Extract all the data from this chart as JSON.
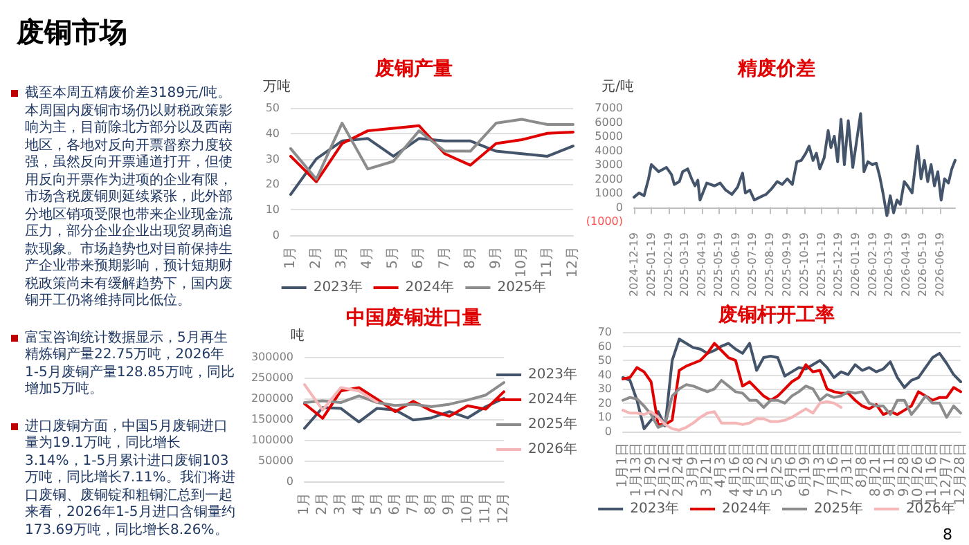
{
  "chart_data": [
    {
      "type": "other",
      "title": "废铜市场",
      "annotations": [
        "截至本周五精废价差3189元/吨。本周国内废铜市场仍以财税政策影响为主，目前除北方部分以及西南地区，各地对反向开票督察力度较强，虽然反向开票通道打开，但使用反向开票作为进项的企业有限，市场含税废铜则延续紧张，此外部分地区销项受限也带来企业现金流压力，部分企业企业出现贸易商追款现象。市场趋势也对目前保持生产企业带来预期影响，预计短期财税政策尚未有缓解趋势下，国内废铜开工仍将维持同比低位。",
        "富宝咨询统计数据显示，5月再生精炼铜产量22.75万吨，2026年1-5月废铜产量128.85万吨，同比增加5万吨。",
        "进口废铜方面，中国5月废铜进口量为19.1万吨，同比增长3.14%，1-5月累计进口废铜103万吨，同比增长7.11%。我们将进口废铜、废铜锭和粗铜汇总到一起来看，2026年1-5月进口含铜量约173.69万吨，同比增长8.26%。",
        "8"
      ]
    },
    {
      "type": "line",
      "title": "废铜产量",
      "ylabel": "万吨",
      "categories": [
        "1月",
        "2月",
        "3月",
        "4月",
        "5月",
        "6月",
        "7月",
        "8月",
        "9月",
        "10月",
        "11月",
        "12月"
      ],
      "series": [
        {
          "name": "2023年",
          "color": "#44546a",
          "values": [
            16,
            30,
            37,
            38,
            31,
            38,
            37,
            37,
            33,
            32,
            31,
            35
          ]
        },
        {
          "name": "2024年",
          "color": "#e00000",
          "values": [
            31,
            21,
            36,
            41,
            42,
            43,
            32,
            27.5,
            36,
            37.5,
            40,
            40.5
          ]
        },
        {
          "name": "2025年",
          "color": "#8c8c8c",
          "values": [
            34,
            22,
            44,
            26,
            29,
            41,
            33,
            33,
            44,
            45.5,
            43.5,
            43.5
          ]
        }
      ],
      "ylim": [
        0,
        50
      ],
      "yticks": [
        0,
        10,
        20,
        30,
        40,
        50
      ],
      "grid": "y",
      "legend": "bottom"
    },
    {
      "type": "line",
      "title": "精废价差",
      "ylabel": "元/吨",
      "xlim": [
        "2024-12-19",
        "2026-07-16"
      ],
      "xticks": [
        "2024-12-19",
        "2025-01-19",
        "2025-02-19",
        "2025-03-19",
        "2025-04-19",
        "2025-05-19",
        "2025-06-19",
        "2025-07-19",
        "2025-08-19",
        "2025-09-19",
        "2025-10-19",
        "2025-11-19",
        "2025-12-19",
        "2026-01-19",
        "2026-02-19",
        "2026-03-19",
        "2026-04-19",
        "2026-05-19",
        "2026-06-19"
      ],
      "x": [
        "2024-12-19",
        "2024-12-28",
        "2025-01-06",
        "2025-01-14",
        "2025-01-19",
        "2025-02-01",
        "2025-02-15",
        "2025-02-24",
        "2025-03-01",
        "2025-03-10",
        "2025-03-16",
        "2025-03-25",
        "2025-04-01",
        "2025-04-07",
        "2025-04-12",
        "2025-04-16",
        "2025-04-28",
        "2025-05-12",
        "2025-05-22",
        "2025-06-01",
        "2025-06-12",
        "2025-06-22",
        "2025-07-01",
        "2025-07-06",
        "2025-07-14",
        "2025-07-22",
        "2025-08-01",
        "2025-08-12",
        "2025-08-22",
        "2025-09-01",
        "2025-09-10",
        "2025-09-19",
        "2025-09-28",
        "2025-10-06",
        "2025-10-14",
        "2025-10-22",
        "2025-10-28",
        "2025-11-04",
        "2025-11-10",
        "2025-11-16",
        "2025-11-24",
        "2025-12-01",
        "2025-12-06",
        "2025-12-12",
        "2025-12-18",
        "2025-12-24",
        "2025-12-30",
        "2026-01-06",
        "2026-01-14",
        "2026-01-28",
        "2026-02-03",
        "2026-02-10",
        "2026-02-18",
        "2026-02-25",
        "2026-03-03",
        "2026-03-09",
        "2026-03-16",
        "2026-03-22",
        "2026-03-28",
        "2026-04-03",
        "2026-04-09",
        "2026-04-16",
        "2026-04-22",
        "2026-04-30",
        "2026-05-10",
        "2026-05-16",
        "2026-05-22",
        "2026-05-28",
        "2026-06-03",
        "2026-06-09",
        "2026-06-15",
        "2026-06-21",
        "2026-06-27",
        "2026-07-04",
        "2026-07-10",
        "2026-07-16"
      ],
      "series": [
        {
          "color": "#44546a",
          "values": [
            700,
            1000,
            800,
            2000,
            3000,
            2500,
            2800,
            2300,
            1600,
            1800,
            2500,
            2700,
            2000,
            1500,
            1900,
            500,
            1700,
            1500,
            1700,
            1200,
            900,
            1400,
            2400,
            1000,
            1200,
            500,
            700,
            900,
            1300,
            1800,
            1600,
            2000,
            1600,
            3200,
            3300,
            3800,
            4300,
            3300,
            3800,
            2700,
            3500,
            5400,
            4200,
            5000,
            3200,
            6200,
            3000,
            6100,
            2800,
            6600,
            2500,
            3200,
            3000,
            3100,
            2200,
            1000,
            -600,
            800,
            -400,
            500,
            200,
            1800,
            1500,
            1000,
            4300,
            2000,
            3300,
            1800,
            3000,
            1500,
            2500,
            500,
            2000,
            1700,
            2700,
            3300
          ]
        }
      ],
      "ylim": [
        -1000,
        7000
      ],
      "yticks": [
        {
          "value": -1000,
          "label": "(1000)"
        },
        0,
        1000,
        2000,
        3000,
        4000,
        5000,
        6000,
        7000
      ]
    },
    {
      "type": "line",
      "title": "中国废铜进口量",
      "ylabel": "吨",
      "categories": [
        "1月",
        "2月",
        "3月",
        "4月",
        "5月",
        "6月",
        "7月",
        "8月",
        "9月",
        "10月",
        "11月",
        "12月"
      ],
      "series": [
        {
          "name": "2023年",
          "color": "#44546a",
          "values": [
            128000,
            178000,
            176000,
            143000,
            176000,
            172000,
            148000,
            153000,
            168000,
            153000,
            180000,
            200000
          ]
        },
        {
          "name": "2024年",
          "color": "#e00000",
          "values": [
            187000,
            152000,
            218000,
            226000,
            198000,
            168000,
            193000,
            170000,
            157000,
            182000,
            174000,
            216000
          ]
        },
        {
          "name": "2025年",
          "color": "#8c8c8c",
          "values": [
            190000,
            194000,
            190000,
            206000,
            190000,
            183000,
            186000,
            180000,
            186000,
            196000,
            208000,
            238000
          ]
        },
        {
          "name": "2026年",
          "color": "#f4b6b6",
          "values": [
            233000,
            172000,
            226000,
            218000,
            191000,
            null,
            null,
            null,
            null,
            null,
            null,
            null
          ]
        }
      ],
      "ylim": [
        0,
        300000
      ],
      "yticks": [
        0,
        50000,
        100000,
        150000,
        200000,
        250000,
        300000
      ],
      "grid": "y",
      "legend": "right"
    },
    {
      "type": "line",
      "title": "废铜杆开工率",
      "categories": [
        "1月1日",
        null,
        "1月13日",
        null,
        "1月29日",
        null,
        "2月12日",
        null,
        "2月24日",
        null,
        "3月9日",
        null,
        "3月21日",
        null,
        "4月3日",
        null,
        "4月16日",
        null,
        "4月28日",
        null,
        "5月12日",
        null,
        "5月25日",
        null,
        "6月6日",
        null,
        "6月19日",
        null,
        "7月3日",
        null,
        "7月16日",
        null,
        "7月31日",
        null,
        "8月8日",
        null,
        "8月21日",
        null,
        "9月11日",
        null,
        "9月28日",
        null,
        "10月26日",
        null,
        "11月16日",
        null,
        "12月7日",
        null,
        "12月28日"
      ],
      "series": [
        {
          "name": "2023年",
          "color": "#44546a",
          "values": [
            38,
            36,
            22,
            2,
            8,
            14,
            4,
            50,
            65,
            62,
            59,
            58,
            55,
            57,
            60,
            62,
            58,
            55,
            62,
            43,
            52,
            53,
            52,
            39,
            42,
            45,
            44,
            47,
            50,
            45,
            38,
            42,
            40,
            47,
            43,
            45,
            42,
            44,
            49,
            38,
            31,
            36,
            38,
            45,
            52,
            55,
            48,
            40,
            35
          ]
        },
        {
          "name": "2024年",
          "color": "#e00000",
          "values": [
            37,
            38,
            45,
            42,
            35,
            5,
            5,
            8,
            43,
            46,
            48,
            50,
            55,
            62,
            57,
            52,
            50,
            32,
            35,
            30,
            25,
            22,
            25,
            30,
            35,
            38,
            47,
            42,
            43,
            30,
            28,
            27,
            27,
            22,
            18,
            16,
            19,
            12,
            14,
            12,
            15,
            18,
            28,
            25,
            22,
            24,
            24,
            31,
            28
          ]
        },
        {
          "name": "2025年",
          "color": "#8c8c8c",
          "values": [
            22,
            24,
            23,
            18,
            12,
            3,
            5,
            25,
            30,
            33,
            32,
            30,
            28,
            30,
            36,
            32,
            28,
            27,
            22,
            22,
            17,
            22,
            22,
            20,
            25,
            28,
            32,
            30,
            22,
            26,
            24,
            25,
            28,
            27,
            28,
            20,
            18,
            18,
            12,
            22,
            22,
            12,
            18,
            25,
            20,
            20,
            10,
            18,
            13
          ]
        },
        {
          "name": "2026年",
          "color": "#f4b6b6",
          "values": [
            15,
            13,
            13,
            12,
            14,
            10,
            5,
            2,
            1,
            3,
            6,
            10,
            13,
            14,
            6,
            6,
            6,
            5,
            6,
            9,
            9,
            7,
            7,
            8,
            10,
            13,
            16,
            13,
            20,
            21,
            20,
            17,
            null,
            null,
            null,
            null,
            null,
            null,
            null,
            null,
            null,
            null,
            null,
            null,
            null,
            null,
            null,
            null,
            null
          ]
        }
      ],
      "ylim": [
        0,
        70
      ],
      "yticks": [
        0,
        10,
        20,
        30,
        40,
        50,
        60,
        70
      ],
      "grid": "y",
      "legend": "bottom"
    }
  ]
}
